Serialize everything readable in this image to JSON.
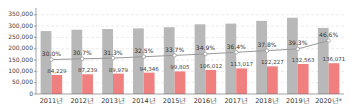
{
  "chart_data": {
    "type": "bar",
    "categories": [
      "2011년",
      "2012년",
      "2013년",
      "2014년",
      "2015년",
      "2016년",
      "2017년",
      "2018년",
      "2019년",
      "2020년*"
    ],
    "series": [
      {
        "type": "bar",
        "color": "#b8b8b8",
        "values": [
          278000,
          284000,
          287000,
          290000,
          295000,
          308000,
          311000,
          323000,
          337000,
          292000
        ]
      },
      {
        "type": "bar",
        "color": "#f08080",
        "values": [
          84229,
          87239,
          89979,
          94346,
          99805,
          106012,
          113017,
          122227,
          132563,
          136071
        ],
        "data_labels": true,
        "value_labels": [
          "84,229",
          "87,239",
          "89,979",
          "94,346",
          "99,805",
          "106,012",
          "113,017",
          "122,227",
          "132,563",
          "136,071"
        ]
      },
      {
        "type": "line",
        "axis": "y2",
        "color": "#999999",
        "marker": "circle",
        "values": [
          30.0,
          30.7,
          31.3,
          32.5,
          33.7,
          34.9,
          36.4,
          37.8,
          39.3,
          46.6
        ],
        "data_labels": true,
        "value_labels": [
          "30.0%",
          "30.7%",
          "31.3%",
          "32.5%",
          "33.7%",
          "34.9%",
          "36.4%",
          "37.8%",
          "39.3%",
          "46.6%"
        ]
      }
    ],
    "ylim": [
      0,
      380000
    ],
    "yticks": [
      0,
      {
        "value": 50000,
        "label": "50,000"
      },
      {
        "value": 100000,
        "label": "100,000"
      },
      {
        "value": 150000,
        "label": "150,000"
      },
      {
        "value": 200000,
        "label": "200,000"
      },
      {
        "value": 250000,
        "label": "250,000"
      },
      {
        "value": 300000,
        "label": "300,000"
      },
      {
        "value": 350000,
        "label": "350,000"
      }
    ],
    "y2lim": [
      0,
      75
    ],
    "grid": true
  }
}
